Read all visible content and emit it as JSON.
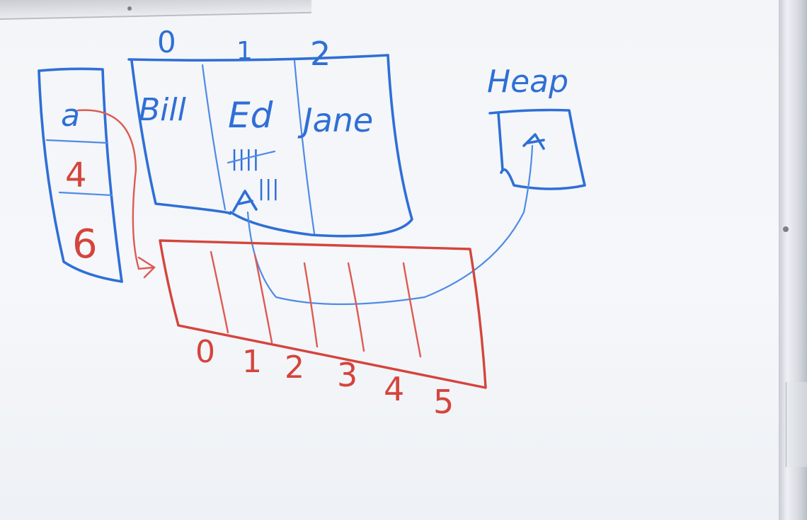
{
  "stack_frame": {
    "cells": [
      "a",
      "4",
      "6"
    ]
  },
  "object_table": {
    "indices": [
      "0",
      "1",
      "2"
    ],
    "names": [
      "Bill",
      "Ed",
      "Jane"
    ],
    "tally_top": "||||",
    "tally_bottom": "|||"
  },
  "heap_label": "Heap",
  "array": {
    "indices": [
      "0",
      "1",
      "2",
      "3",
      "4",
      "5"
    ]
  },
  "colors": {
    "blue_ink": "#2f6fd6",
    "red_ink": "#d5443c",
    "board": "#f3f5f8"
  }
}
